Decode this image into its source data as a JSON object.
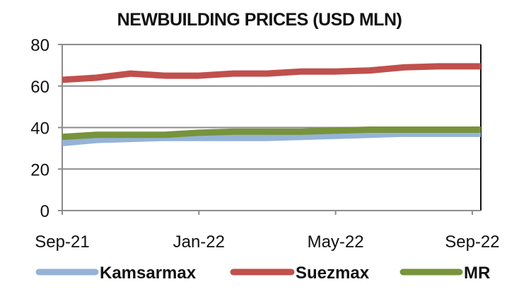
{
  "chart_data": {
    "type": "line",
    "title": "NEWBUILDING PRICES (USD MLN)",
    "xlabel": "",
    "ylabel": "",
    "x": [
      "Sep-21",
      "Oct-21",
      "Nov-21",
      "Dec-21",
      "Jan-22",
      "Feb-22",
      "Mar-22",
      "Apr-22",
      "May-22",
      "Jun-22",
      "Jul-22",
      "Aug-22",
      "Sep-22"
    ],
    "x_tick_labels": [
      "Sep-21",
      "Jan-22",
      "May-22",
      "Sep-22"
    ],
    "x_tick_indices": [
      0,
      4,
      8,
      12
    ],
    "ylim": [
      0,
      80
    ],
    "y_ticks": [
      0,
      20,
      40,
      60,
      80
    ],
    "grid": true,
    "legend_position": "bottom",
    "series": [
      {
        "name": "Kamsarmax",
        "color": "#95b3d7",
        "values": [
          32.5,
          34,
          34.5,
          35,
          35,
          35,
          35,
          35.5,
          36,
          36.5,
          37,
          37,
          37
        ]
      },
      {
        "name": "Suezmax",
        "color": "#c0504d",
        "values": [
          63,
          64,
          66,
          65,
          65,
          66,
          66,
          67,
          67,
          67.5,
          69,
          69.5,
          69.5
        ]
      },
      {
        "name": "MR",
        "color": "#77933c",
        "values": [
          35.5,
          36.5,
          36.5,
          36.5,
          37.5,
          38,
          38,
          38,
          38.5,
          39,
          39,
          39,
          39
        ]
      }
    ]
  }
}
